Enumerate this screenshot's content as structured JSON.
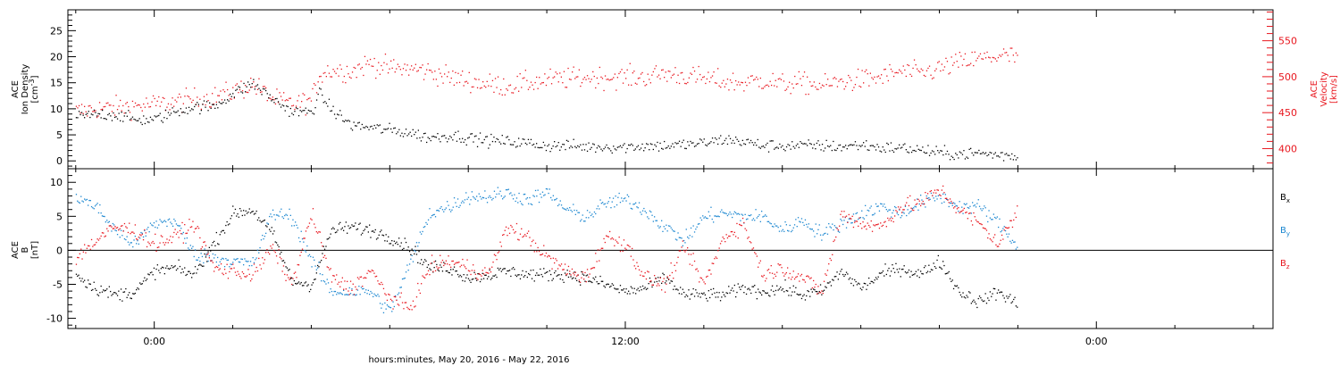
{
  "colors": {
    "black": "#000000",
    "red": "#e8161e",
    "blue": "#1a86d0"
  },
  "footer": {
    "xlabel": "hours:minutes, May 20, 2016 - May 22, 2016"
  },
  "chart_data": [
    {
      "type": "scatter",
      "panel": "top",
      "x_unit": "hours since 2016-05-20 00:00",
      "xlim": [
        -2.2,
        28.5
      ],
      "x_ticks": [
        0,
        12,
        24
      ],
      "x_tick_labels": [
        "0:00",
        "12:00",
        "0:00"
      ],
      "left_axis": {
        "label_lines": [
          "ACE",
          "Ion Density",
          "[cm^-3]"
        ],
        "ylim": [
          -1.5,
          29
        ],
        "major_ticks": [
          0,
          5,
          10,
          15,
          20,
          25
        ]
      },
      "right_axis": {
        "label_lines": [
          "ACE",
          "Velocity",
          "[km/s]"
        ],
        "ylim": [
          372,
          593
        ],
        "major_ticks": [
          400,
          450,
          500,
          550
        ],
        "color": "#e8161e"
      },
      "series": [
        {
          "axis": "left",
          "color": "#000000",
          "x": [
            -2.0,
            -1.5,
            -1.0,
            -0.5,
            0.0,
            0.5,
            1.0,
            1.5,
            2.0,
            2.5,
            3.0,
            3.5,
            4.0,
            4.2,
            4.5,
            5.0,
            5.5,
            6.0,
            6.5,
            7.0,
            7.5,
            8.0,
            8.5,
            9.0,
            9.5,
            10.0,
            10.5,
            11.0,
            11.5,
            12.0,
            12.5,
            13.0,
            13.5,
            14.0,
            14.5,
            15.0,
            15.5,
            16.0,
            16.5,
            17.0,
            17.5,
            18.0,
            18.5,
            19.0,
            19.5,
            20.0,
            20.5,
            21.0,
            21.5,
            22.0
          ],
          "y": [
            8.5,
            9.0,
            9.0,
            8.0,
            8.0,
            9.5,
            10.5,
            10.5,
            13.0,
            15.0,
            12.0,
            9.5,
            9.5,
            13.0,
            10.0,
            7.0,
            6.5,
            6.0,
            5.5,
            4.5,
            5.0,
            4.5,
            4.0,
            3.8,
            3.5,
            3.0,
            3.0,
            2.8,
            2.8,
            2.8,
            3.0,
            3.0,
            3.2,
            3.5,
            4.2,
            3.8,
            3.0,
            3.0,
            3.0,
            3.0,
            2.8,
            3.2,
            2.6,
            2.6,
            2.2,
            1.6,
            1.4,
            1.6,
            1.2,
            1.0
          ]
        },
        {
          "axis": "right",
          "color": "#e8161e",
          "x": [
            -2.0,
            -1.5,
            -1.0,
            -0.5,
            0.0,
            0.5,
            1.0,
            1.5,
            2.0,
            2.5,
            3.0,
            3.5,
            4.0,
            4.2,
            4.5,
            5.0,
            5.5,
            6.0,
            6.5,
            7.0,
            7.5,
            8.0,
            8.5,
            9.0,
            9.5,
            10.0,
            10.5,
            11.0,
            11.5,
            12.0,
            12.5,
            13.0,
            13.5,
            14.0,
            14.5,
            15.0,
            15.5,
            16.0,
            16.5,
            17.0,
            17.5,
            18.0,
            18.5,
            19.0,
            19.5,
            20.0,
            20.5,
            21.0,
            21.5,
            22.0
          ],
          "y": [
            452,
            456,
            458,
            460,
            462,
            465,
            470,
            472,
            480,
            490,
            470,
            462,
            468,
            505,
            510,
            508,
            520,
            512,
            512,
            508,
            500,
            495,
            490,
            488,
            492,
            496,
            498,
            500,
            500,
            500,
            500,
            505,
            502,
            498,
            494,
            492,
            496,
            490,
            492,
            488,
            494,
            496,
            500,
            508,
            505,
            512,
            520,
            525,
            530,
            528
          ]
        }
      ]
    },
    {
      "type": "scatter",
      "panel": "bottom",
      "x_unit": "hours since 2016-05-20 00:00",
      "xlim": [
        -2.2,
        28.5
      ],
      "x_ticks": [
        0,
        12,
        24
      ],
      "x_tick_labels": [
        "0:00",
        "12:00",
        "0:00"
      ],
      "y_axis": {
        "label_lines": [
          "ACE",
          "B",
          "[nT]"
        ],
        "ylim": [
          -11.5,
          12
        ],
        "major_ticks": [
          -10,
          -5,
          0,
          5,
          10
        ],
        "zero_line": true
      },
      "legend_position": "right",
      "series": [
        {
          "name": "Bx",
          "color": "#000000",
          "x": [
            -2.0,
            -1.5,
            -1.0,
            -0.5,
            0.0,
            0.5,
            1.0,
            1.5,
            2.0,
            2.5,
            3.0,
            3.5,
            4.0,
            4.5,
            5.0,
            5.5,
            6.0,
            6.5,
            7.0,
            7.5,
            8.0,
            8.5,
            9.0,
            9.5,
            10.0,
            10.5,
            11.0,
            11.5,
            12.0,
            12.5,
            13.0,
            13.5,
            14.0,
            14.5,
            15.0,
            15.5,
            16.0,
            16.5,
            17.0,
            17.5,
            18.0,
            18.5,
            19.0,
            19.5,
            20.0,
            20.5,
            21.0,
            21.5,
            22.0
          ],
          "y": [
            -3.5,
            -5.5,
            -6.5,
            -6.0,
            -3.0,
            -2.5,
            -3.5,
            1.0,
            5.5,
            6.0,
            2.5,
            -4.5,
            -5.0,
            3.0,
            3.5,
            3.0,
            2.0,
            0.5,
            -2.5,
            -2.5,
            -4.0,
            -3.5,
            -3.0,
            -3.5,
            -3.5,
            -3.5,
            -4.0,
            -5.0,
            -6.0,
            -5.5,
            -4.0,
            -6.5,
            -6.5,
            -6.5,
            -5.5,
            -6.0,
            -5.5,
            -6.5,
            -6.0,
            -3.0,
            -5.5,
            -3.5,
            -2.5,
            -3.5,
            -1.5,
            -6.0,
            -7.5,
            -6.0,
            -8.0
          ]
        },
        {
          "name": "By",
          "color": "#1a86d0",
          "x": [
            -2.0,
            -1.5,
            -1.0,
            -0.5,
            0.0,
            0.5,
            1.0,
            1.5,
            2.0,
            2.5,
            3.0,
            3.5,
            4.0,
            4.5,
            5.0,
            5.5,
            6.0,
            6.5,
            7.0,
            7.5,
            8.0,
            8.5,
            9.0,
            9.5,
            10.0,
            10.5,
            11.0,
            11.5,
            12.0,
            12.5,
            13.0,
            13.5,
            14.0,
            14.5,
            15.0,
            15.5,
            16.0,
            16.5,
            17.0,
            17.5,
            18.0,
            18.5,
            19.0,
            19.5,
            20.0,
            20.5,
            21.0,
            21.5,
            22.0
          ],
          "y": [
            8.0,
            6.5,
            3.0,
            1.0,
            4.0,
            4.5,
            -0.5,
            -1.0,
            -1.5,
            -2.0,
            5.5,
            5.0,
            -1.5,
            -6.0,
            -6.0,
            -6.0,
            -9.0,
            -2.0,
            5.5,
            6.5,
            8.0,
            8.0,
            8.5,
            7.5,
            8.5,
            6.0,
            5.0,
            7.0,
            7.5,
            6.0,
            3.5,
            1.5,
            5.0,
            5.5,
            5.0,
            5.0,
            3.0,
            4.5,
            2.5,
            4.0,
            5.5,
            6.5,
            5.5,
            7.0,
            8.0,
            6.5,
            6.5,
            4.0,
            0.5
          ]
        },
        {
          "name": "Bz",
          "color": "#e8161e",
          "x": [
            -2.0,
            -1.5,
            -1.0,
            -0.5,
            0.0,
            0.5,
            1.0,
            1.5,
            2.0,
            2.5,
            3.0,
            3.5,
            4.0,
            4.5,
            5.0,
            5.5,
            6.0,
            6.5,
            7.0,
            7.5,
            8.0,
            8.5,
            9.0,
            9.5,
            10.0,
            10.5,
            11.0,
            11.5,
            12.0,
            12.5,
            13.0,
            13.5,
            14.0,
            14.5,
            15.0,
            15.5,
            16.0,
            16.5,
            17.0,
            17.5,
            18.0,
            18.5,
            19.0,
            19.5,
            20.0,
            20.5,
            21.0,
            21.5,
            22.0
          ],
          "y": [
            -1.0,
            1.5,
            3.5,
            3.0,
            1.0,
            2.0,
            4.0,
            -2.5,
            -3.0,
            -3.5,
            0.5,
            -5.0,
            5.5,
            -4.0,
            -5.5,
            -3.0,
            -7.0,
            -8.5,
            -2.5,
            -1.5,
            -2.5,
            -3.5,
            3.5,
            2.0,
            -1.0,
            -3.0,
            -4.0,
            2.0,
            1.0,
            -4.0,
            -5.0,
            0.5,
            -5.0,
            2.0,
            4.0,
            -3.5,
            -2.5,
            -4.0,
            -6.0,
            5.5,
            4.0,
            3.5,
            6.5,
            7.0,
            9.0,
            6.0,
            4.0,
            1.0,
            6.0
          ]
        }
      ]
    }
  ]
}
